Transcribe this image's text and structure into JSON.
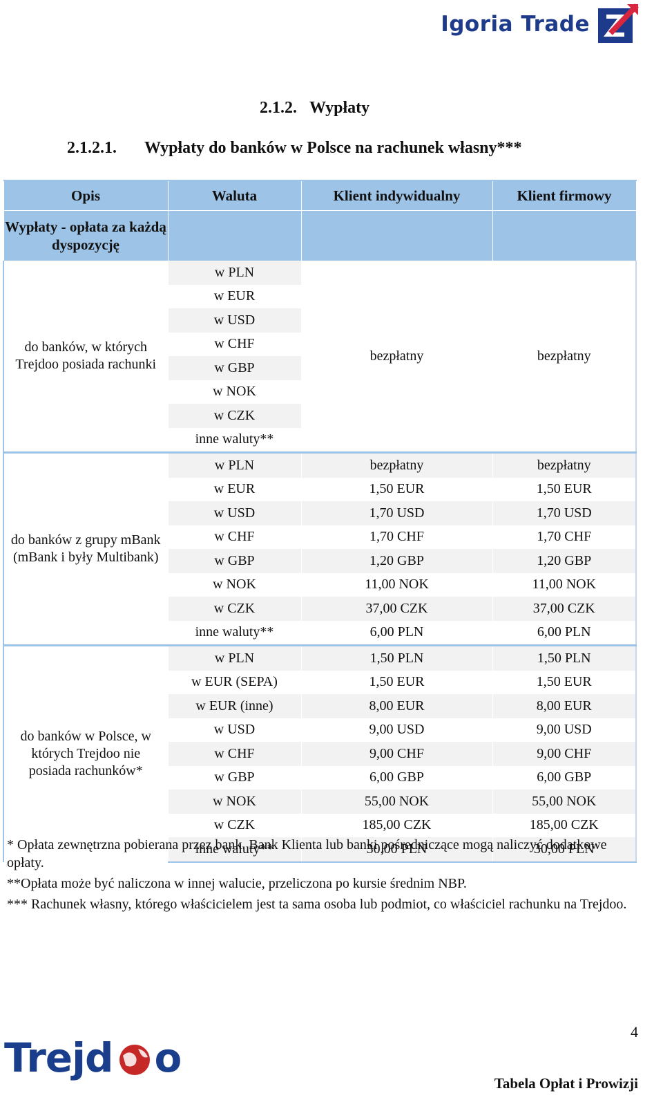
{
  "header": {
    "brand": "Igoria Trade",
    "section_number": "2.1.2.",
    "section_title": "Wypłaty",
    "subsection_number": "2.1.2.1.",
    "subsection_title": "Wypłaty do banków w Polsce na rachunek własny***"
  },
  "colors": {
    "header_fill": "#9dc3e6",
    "row_alt": "#f2f2f2",
    "igoria_blue": "#1e3a8a",
    "igoria_red": "#d7263d",
    "trejdoo_blue": "#1a3e8c",
    "trejdoo_red": "#c62828"
  },
  "table": {
    "columns": [
      "Opis",
      "Waluta",
      "Klient indywidualny",
      "Klient firmowy"
    ],
    "subheader": "Wypłaty - opłata za każdą dyspozycję",
    "groups": [
      {
        "description": "do banków, w których Trejdoo posiada rachunki",
        "merged_individual": "bezpłatny",
        "merged_business": "bezpłatny",
        "rows": [
          {
            "currency": "w PLN"
          },
          {
            "currency": "w EUR"
          },
          {
            "currency": "w USD"
          },
          {
            "currency": "w CHF"
          },
          {
            "currency": "w GBP"
          },
          {
            "currency": "w NOK"
          },
          {
            "currency": "w CZK"
          },
          {
            "currency": "inne waluty**"
          }
        ]
      },
      {
        "description": "do banków z grupy mBank (mBank i były Multibank)",
        "rows": [
          {
            "currency": "w PLN",
            "individual": "bezpłatny",
            "business": "bezpłatny"
          },
          {
            "currency": "w EUR",
            "individual": "1,50 EUR",
            "business": "1,50 EUR"
          },
          {
            "currency": "w USD",
            "individual": "1,70 USD",
            "business": "1,70 USD"
          },
          {
            "currency": "w CHF",
            "individual": "1,70 CHF",
            "business": "1,70 CHF"
          },
          {
            "currency": "w GBP",
            "individual": "1,20 GBP",
            "business": "1,20 GBP"
          },
          {
            "currency": "w NOK",
            "individual": "11,00 NOK",
            "business": "11,00 NOK"
          },
          {
            "currency": "w CZK",
            "individual": "37,00 CZK",
            "business": "37,00 CZK"
          },
          {
            "currency": "inne waluty**",
            "individual": "6,00 PLN",
            "business": "6,00 PLN"
          }
        ]
      },
      {
        "description": "do banków w Polsce, w których Trejdoo nie posiada rachunków*",
        "rows": [
          {
            "currency": "w PLN",
            "individual": "1,50 PLN",
            "business": "1,50 PLN"
          },
          {
            "currency": "w EUR (SEPA)",
            "individual": "1,50 EUR",
            "business": "1,50 EUR"
          },
          {
            "currency": "w EUR (inne)",
            "individual": "8,00 EUR",
            "business": "8,00 EUR"
          },
          {
            "currency": "w USD",
            "individual": "9,00 USD",
            "business": "9,00 USD"
          },
          {
            "currency": "w CHF",
            "individual": "9,00 CHF",
            "business": "9,00 CHF"
          },
          {
            "currency": "w GBP",
            "individual": "6,00 GBP",
            "business": "6,00 GBP"
          },
          {
            "currency": "w NOK",
            "individual": "55,00 NOK",
            "business": "55,00 NOK"
          },
          {
            "currency": "w CZK",
            "individual": "185,00 CZK",
            "business": "185,00 CZK"
          },
          {
            "currency": "inne waluty**",
            "individual": "30,00 PLN",
            "business": "30,00 PLN"
          }
        ]
      }
    ]
  },
  "notes": [
    "* Opłata zewnętrzna pobierana przez bank. Bank Klienta lub banki pośredniczące mogą naliczyć dodatkowe opłaty.",
    "**Opłata może być naliczona w innej walucie, przeliczona po kursie średnim NBP.",
    "*** Rachunek własny, którego właścicielem jest ta sama osoba lub podmiot, co właściciel rachunku na Trejdoo."
  ],
  "footer": {
    "page_number": "4",
    "brand": "Trejdoo",
    "brand_text": "Trejd",
    "brand_tail": "o",
    "document_title": "Tabela Opłat i Prowizji"
  }
}
